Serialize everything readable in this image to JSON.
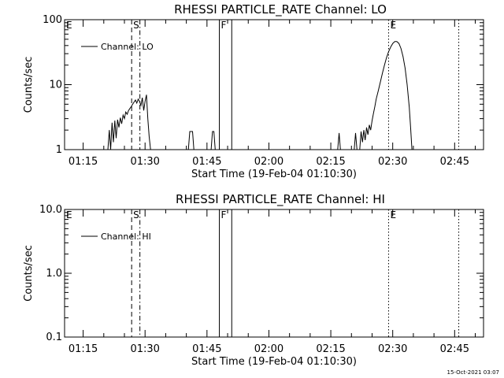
{
  "footer": {
    "timestamp": "15-Oct-2021 03:07"
  },
  "chart_data": [
    {
      "type": "line",
      "title": "RHESSI PARTICLE_RATE Channel: LO",
      "xlabel": "Start Time (19-Feb-04 01:10:30)",
      "ylabel": "Counts/sec",
      "y_scale": "log",
      "ylim": [
        1,
        100
      ],
      "y_ticks": [
        {
          "value": 1,
          "label": "1"
        },
        {
          "value": 10,
          "label": "10"
        },
        {
          "value": 100,
          "label": "100"
        }
      ],
      "xlim": [
        "01:10:30",
        "02:52:00"
      ],
      "x_ticks": [
        "01:15",
        "01:30",
        "01:45",
        "02:00",
        "02:15",
        "02:30",
        "02:45"
      ],
      "legend": {
        "entries": [
          "Channel: LO"
        ],
        "position": "top-left"
      },
      "series": [
        {
          "name": "Channel: LO",
          "points": [
            [
              "01:21:00",
              1
            ],
            [
              "01:21:20",
              2
            ],
            [
              "01:21:40",
              1
            ],
            [
              "01:22:00",
              2.6
            ],
            [
              "01:22:20",
              1.3
            ],
            [
              "01:22:40",
              2.8
            ],
            [
              "01:23:00",
              1.5
            ],
            [
              "01:23:20",
              2.9
            ],
            [
              "01:23:40",
              2.2
            ],
            [
              "01:24:00",
              3.1
            ],
            [
              "01:24:20",
              2.5
            ],
            [
              "01:24:40",
              3.4
            ],
            [
              "01:25:00",
              3.0
            ],
            [
              "01:25:20",
              3.8
            ],
            [
              "01:25:40",
              3.5
            ],
            [
              "01:26:00",
              4.0
            ],
            [
              "01:26:20",
              4.3
            ],
            [
              "01:26:40",
              4.6
            ],
            [
              "01:27:00",
              5.0
            ],
            [
              "01:27:20",
              5.4
            ],
            [
              "01:27:40",
              5.8
            ],
            [
              "01:28:00",
              5.2
            ],
            [
              "01:28:20",
              6.0
            ],
            [
              "01:28:40",
              5.5
            ],
            [
              "01:29:00",
              4.8
            ],
            [
              "01:29:20",
              6.3
            ],
            [
              "01:29:40",
              4.0
            ],
            [
              "01:30:00",
              5.5
            ],
            [
              "01:30:20",
              7.0
            ],
            [
              "01:30:40",
              3.0
            ],
            [
              "01:31:00",
              1.6
            ],
            [
              "01:31:20",
              1
            ],
            [
              "01:40:30",
              1
            ],
            [
              "01:40:50",
              1.9
            ],
            [
              "01:41:30",
              1.9
            ],
            [
              "01:41:50",
              1
            ],
            [
              "01:46:00",
              1
            ],
            [
              "01:46:20",
              1.9
            ],
            [
              "01:46:40",
              1.9
            ],
            [
              "01:47:00",
              1
            ],
            [
              "02:16:40",
              1
            ],
            [
              "02:17:00",
              1.8
            ],
            [
              "02:17:20",
              1
            ],
            [
              "02:20:40",
              1
            ],
            [
              "02:21:00",
              1.8
            ],
            [
              "02:21:20",
              1
            ],
            [
              "02:22:00",
              1
            ],
            [
              "02:22:20",
              1.9
            ],
            [
              "02:22:40",
              1.3
            ],
            [
              "02:23:00",
              2.0
            ],
            [
              "02:23:20",
              1.4
            ],
            [
              "02:23:40",
              2.2
            ],
            [
              "02:24:00",
              1.7
            ],
            [
              "02:24:20",
              2.4
            ],
            [
              "02:24:40",
              2.0
            ],
            [
              "02:25:00",
              2.8
            ],
            [
              "02:25:20",
              3.6
            ],
            [
              "02:25:40",
              4.6
            ],
            [
              "02:26:00",
              6
            ],
            [
              "02:26:30",
              8
            ],
            [
              "02:27:00",
              11
            ],
            [
              "02:27:30",
              15
            ],
            [
              "02:28:00",
              20
            ],
            [
              "02:28:30",
              26
            ],
            [
              "02:29:00",
              32
            ],
            [
              "02:29:30",
              38
            ],
            [
              "02:30:00",
              43
            ],
            [
              "02:30:30",
              46
            ],
            [
              "02:31:00",
              46
            ],
            [
              "02:31:30",
              43
            ],
            [
              "02:32:00",
              36
            ],
            [
              "02:32:30",
              27
            ],
            [
              "02:33:00",
              18
            ],
            [
              "02:33:30",
              10
            ],
            [
              "02:34:00",
              4.5
            ],
            [
              "02:34:20",
              2.2
            ],
            [
              "02:34:40",
              1
            ]
          ]
        }
      ],
      "markers": [
        {
          "label": "E",
          "time": "01:10:30",
          "style": "solid"
        },
        {
          "label": "S",
          "time": "01:26:45",
          "style": "dashed"
        },
        {
          "label": "",
          "time": "01:28:45",
          "style": "dashdot"
        },
        {
          "label": "F",
          "time": "01:48:00",
          "style": "solid"
        },
        {
          "label": "",
          "time": "01:51:00",
          "style": "solid"
        },
        {
          "label": "E",
          "time": "02:29:00",
          "style": "dotted"
        },
        {
          "label": "",
          "time": "02:46:00",
          "style": "dotted"
        }
      ]
    },
    {
      "type": "line",
      "title": "RHESSI PARTICLE_RATE Channel: HI",
      "xlabel": "Start Time (19-Feb-04 01:10:30)",
      "ylabel": "Counts/sec",
      "y_scale": "log",
      "ylim": [
        0.1,
        10
      ],
      "y_ticks": [
        {
          "value": 0.1,
          "label": "0.1"
        },
        {
          "value": 1,
          "label": "1.0"
        },
        {
          "value": 10,
          "label": "10.0"
        }
      ],
      "xlim": [
        "01:10:30",
        "02:52:00"
      ],
      "x_ticks": [
        "01:15",
        "01:30",
        "01:45",
        "02:00",
        "02:15",
        "02:30",
        "02:45"
      ],
      "legend": {
        "entries": [
          "Channel: HI"
        ],
        "position": "top-left"
      },
      "series": [
        {
          "name": "Channel: HI",
          "points": []
        }
      ],
      "markers": [
        {
          "label": "E",
          "time": "01:10:30",
          "style": "solid"
        },
        {
          "label": "S",
          "time": "01:26:45",
          "style": "dashed"
        },
        {
          "label": "",
          "time": "01:28:45",
          "style": "dashdot"
        },
        {
          "label": "F",
          "time": "01:48:00",
          "style": "solid"
        },
        {
          "label": "",
          "time": "01:51:00",
          "style": "solid"
        },
        {
          "label": "E",
          "time": "02:29:00",
          "style": "dotted"
        },
        {
          "label": "",
          "time": "02:46:00",
          "style": "dotted"
        }
      ]
    }
  ]
}
